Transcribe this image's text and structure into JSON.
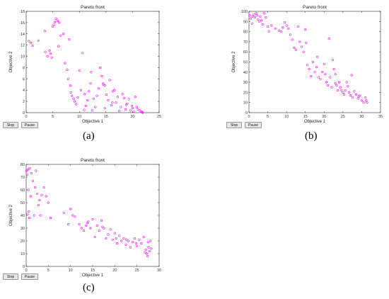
{
  "chart_data": [
    {
      "type": "scatter",
      "caption": "(a)",
      "title": "Pareto front",
      "xlabel": "Objective 1",
      "ylabel": "Objective 2",
      "xlim": [
        0,
        25
      ],
      "ylim": [
        0,
        18
      ],
      "xticks": [
        0,
        5,
        10,
        15,
        20,
        25
      ],
      "yticks": [
        0,
        2,
        4,
        6,
        8,
        10,
        12,
        14,
        16,
        18
      ],
      "grid": false,
      "marker_color": "#ff00ff",
      "buttons": [
        "Stop",
        "Pause"
      ],
      "points": [
        [
          0.5,
          12.7
        ],
        [
          0.9,
          12.4
        ],
        [
          1.2,
          11.9
        ],
        [
          2.3,
          12.8
        ],
        [
          3.5,
          14.5
        ],
        [
          3.6,
          10.8
        ],
        [
          4.0,
          10.0
        ],
        [
          4.4,
          11.0
        ],
        [
          4.6,
          10.5
        ],
        [
          4.8,
          9.8
        ],
        [
          5.0,
          15.3
        ],
        [
          5.2,
          15.6
        ],
        [
          5.4,
          16.1
        ],
        [
          5.6,
          16.7
        ],
        [
          5.9,
          16.3
        ],
        [
          6.2,
          16.0
        ],
        [
          6.5,
          13.7
        ],
        [
          7.0,
          14.0
        ],
        [
          7.3,
          8.8
        ],
        [
          7.7,
          7.6
        ],
        [
          7.9,
          6.0
        ],
        [
          8.1,
          13.0
        ],
        [
          8.3,
          4.8
        ],
        [
          8.6,
          3.0
        ],
        [
          8.9,
          2.5
        ],
        [
          9.1,
          2.0
        ],
        [
          9.4,
          1.5
        ],
        [
          9.7,
          2.7
        ],
        [
          10.0,
          7.5
        ],
        [
          10.3,
          4.0
        ],
        [
          10.6,
          10.6
        ],
        [
          10.9,
          0.5
        ],
        [
          11.2,
          1.2
        ],
        [
          11.5,
          2.2
        ],
        [
          11.8,
          3.8
        ],
        [
          12.1,
          5.2
        ],
        [
          12.4,
          0.4
        ],
        [
          12.7,
          2.5
        ],
        [
          13.0,
          1.0
        ],
        [
          13.3,
          3.0
        ],
        [
          13.6,
          4.3
        ],
        [
          13.9,
          8.0
        ],
        [
          14.2,
          6.5
        ],
        [
          14.5,
          5.0
        ],
        [
          14.8,
          0.8
        ],
        [
          15.1,
          3.2
        ],
        [
          15.4,
          2.2
        ],
        [
          15.7,
          5.8
        ],
        [
          16.0,
          1.3
        ],
        [
          16.3,
          3.8
        ],
        [
          16.6,
          4.0
        ],
        [
          16.9,
          1.8
        ],
        [
          17.2,
          2.8
        ],
        [
          17.5,
          0.3
        ],
        [
          17.8,
          1.0
        ],
        [
          18.1,
          3.3
        ],
        [
          18.4,
          2.6
        ],
        [
          18.7,
          0.6
        ],
        [
          19.0,
          1.6
        ],
        [
          19.3,
          2.4
        ],
        [
          19.6,
          0.4
        ],
        [
          19.9,
          1.2
        ],
        [
          20.2,
          0.2
        ],
        [
          20.5,
          2.8
        ],
        [
          20.8,
          1.0
        ],
        [
          21.0,
          0.6
        ],
        [
          21.3,
          0.4
        ],
        [
          21.6,
          0.2
        ],
        [
          21.8,
          0.1
        ],
        [
          21.9,
          0.0
        ],
        [
          14.5,
          5.2
        ],
        [
          14.8,
          4.8
        ],
        [
          12.2,
          7.2
        ],
        [
          6.1,
          11.8
        ],
        [
          8.4,
          3.6
        ],
        [
          11.0,
          3.3
        ],
        [
          16.2,
          1.8
        ],
        [
          18.8,
          1.4
        ],
        [
          20.0,
          0.8
        ]
      ]
    },
    {
      "type": "scatter",
      "caption": "(b)",
      "title": "Pareto front",
      "xlabel": "Objective 1",
      "ylabel": "Objective 2",
      "xlim": [
        0,
        35
      ],
      "ylim": [
        0,
        100
      ],
      "xticks": [
        0,
        5,
        10,
        15,
        20,
        25,
        30,
        35
      ],
      "yticks": [
        0,
        10,
        20,
        30,
        40,
        50,
        60,
        70,
        80,
        90,
        100
      ],
      "grid": false,
      "marker_color": "#ff00ff",
      "buttons": [
        "Stop",
        "Pause"
      ],
      "points": [
        [
          0.2,
          96
        ],
        [
          0.5,
          93
        ],
        [
          0.8,
          88
        ],
        [
          1.0,
          95
        ],
        [
          1.3,
          97
        ],
        [
          1.6,
          94
        ],
        [
          1.9,
          98
        ],
        [
          2.1,
          96
        ],
        [
          2.4,
          92
        ],
        [
          2.7,
          90
        ],
        [
          3.0,
          95
        ],
        [
          3.3,
          91
        ],
        [
          3.6,
          87
        ],
        [
          4.0,
          98
        ],
        [
          4.5,
          94
        ],
        [
          5.0,
          85
        ],
        [
          5.3,
          80
        ],
        [
          6.0,
          86
        ],
        [
          7.0,
          83
        ],
        [
          8.0,
          81
        ],
        [
          8.5,
          80
        ],
        [
          9.0,
          84
        ],
        [
          9.5,
          89
        ],
        [
          10.0,
          86
        ],
        [
          10.5,
          83
        ],
        [
          11.0,
          77
        ],
        [
          11.5,
          72
        ],
        [
          12.0,
          64
        ],
        [
          12.5,
          62
        ],
        [
          13.0,
          85
        ],
        [
          13.5,
          70
        ],
        [
          14.0,
          65
        ],
        [
          14.5,
          60
        ],
        [
          15.0,
          82
        ],
        [
          15.5,
          47
        ],
        [
          16.0,
          43
        ],
        [
          16.5,
          36
        ],
        [
          17.0,
          50
        ],
        [
          17.5,
          40
        ],
        [
          18.0,
          45
        ],
        [
          18.5,
          35
        ],
        [
          19.0,
          33
        ],
        [
          19.5,
          40
        ],
        [
          20.0,
          48
        ],
        [
          20.3,
          38
        ],
        [
          20.6,
          30
        ],
        [
          21.0,
          27
        ],
        [
          21.3,
          73
        ],
        [
          21.6,
          35
        ],
        [
          22.0,
          25
        ],
        [
          22.3,
          52
        ],
        [
          22.6,
          43
        ],
        [
          23.0,
          38
        ],
        [
          23.3,
          27
        ],
        [
          23.6,
          22
        ],
        [
          24.0,
          30
        ],
        [
          24.3,
          25
        ],
        [
          24.6,
          22
        ],
        [
          25.0,
          20
        ],
        [
          25.3,
          18
        ],
        [
          25.6,
          22
        ],
        [
          26.0,
          30
        ],
        [
          26.3,
          26
        ],
        [
          26.6,
          20
        ],
        [
          27.0,
          17
        ],
        [
          27.3,
          37
        ],
        [
          27.6,
          15
        ],
        [
          28.0,
          21
        ],
        [
          28.5,
          18
        ],
        [
          29.0,
          14
        ],
        [
          29.5,
          17
        ],
        [
          30.0,
          12
        ],
        [
          30.5,
          10
        ],
        [
          31.0,
          15
        ],
        [
          31.2,
          12
        ],
        [
          31.4,
          10
        ],
        [
          18.2,
          55
        ],
        [
          15.2,
          69
        ],
        [
          23.0,
          29
        ],
        [
          29.2,
          16
        ]
      ]
    },
    {
      "type": "scatter",
      "caption": "(c)",
      "title": "Pareto front",
      "xlabel": "Objective 1",
      "ylabel": "Objective 2",
      "xlim": [
        0,
        30
      ],
      "ylim": [
        0,
        80
      ],
      "xticks": [
        0,
        5,
        10,
        15,
        20,
        25,
        30
      ],
      "yticks": [
        0,
        10,
        20,
        30,
        40,
        50,
        60,
        70,
        80
      ],
      "grid": false,
      "marker_color": "#ff00ff",
      "buttons": [
        "Stop",
        "Pause"
      ],
      "points": [
        [
          0.1,
          75
        ],
        [
          0.2,
          72
        ],
        [
          0.3,
          41
        ],
        [
          0.4,
          76
        ],
        [
          0.5,
          60
        ],
        [
          0.6,
          43
        ],
        [
          0.7,
          38
        ],
        [
          0.8,
          77
        ],
        [
          1.0,
          55
        ],
        [
          1.2,
          73
        ],
        [
          1.5,
          67
        ],
        [
          1.8,
          40
        ],
        [
          2.0,
          62
        ],
        [
          2.2,
          75
        ],
        [
          2.5,
          57
        ],
        [
          2.8,
          48
        ],
        [
          3.0,
          52
        ],
        [
          3.2,
          40
        ],
        [
          3.5,
          56
        ],
        [
          4.0,
          62
        ],
        [
          4.5,
          55
        ],
        [
          5.0,
          50
        ],
        [
          5.5,
          38
        ],
        [
          8.5,
          42
        ],
        [
          9.5,
          33
        ],
        [
          10.0,
          45
        ],
        [
          10.5,
          40
        ],
        [
          11.0,
          39
        ],
        [
          12.0,
          33
        ],
        [
          12.5,
          30
        ],
        [
          13.0,
          28
        ],
        [
          13.5,
          32
        ],
        [
          14.0,
          35
        ],
        [
          14.5,
          30
        ],
        [
          15.0,
          37
        ],
        [
          15.5,
          23
        ],
        [
          16.0,
          32
        ],
        [
          16.5,
          28
        ],
        [
          17.0,
          36
        ],
        [
          17.5,
          30
        ],
        [
          18.0,
          22
        ],
        [
          18.5,
          25
        ],
        [
          19.0,
          29
        ],
        [
          19.5,
          21
        ],
        [
          20.0,
          26
        ],
        [
          20.5,
          18
        ],
        [
          21.0,
          24
        ],
        [
          21.5,
          20
        ],
        [
          22.0,
          22
        ],
        [
          22.5,
          17
        ],
        [
          23.0,
          20
        ],
        [
          23.5,
          15
        ],
        [
          24.0,
          19
        ],
        [
          24.5,
          22
        ],
        [
          25.0,
          16
        ],
        [
          25.5,
          21
        ],
        [
          26.0,
          18
        ],
        [
          26.5,
          23
        ],
        [
          27.0,
          13
        ],
        [
          27.2,
          10
        ],
        [
          27.4,
          8
        ],
        [
          27.6,
          15
        ],
        [
          27.8,
          12
        ],
        [
          28.0,
          20
        ],
        [
          28.2,
          14
        ],
        [
          13.8,
          34
        ],
        [
          17.2,
          31
        ],
        [
          20.3,
          22
        ],
        [
          22.6,
          21
        ],
        [
          24.8,
          18
        ],
        [
          26.8,
          11
        ],
        [
          27.5,
          19
        ]
      ]
    }
  ]
}
